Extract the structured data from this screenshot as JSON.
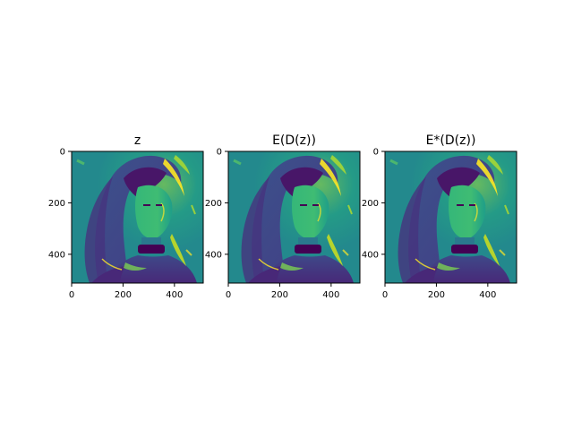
{
  "figure": {
    "background": "#ffffff"
  },
  "colormap": [
    "#440154",
    "#3b528b",
    "#21918c",
    "#5ec962",
    "#fde725"
  ],
  "chart_data": [
    {
      "type": "heatmap",
      "title": "z",
      "xlim": [
        0,
        512
      ],
      "ylim": [
        0,
        512
      ],
      "xticks": [
        0,
        200,
        400
      ],
      "yticks": [
        0,
        200,
        400
      ],
      "xtick_labels": [
        "0",
        "200",
        "400"
      ],
      "ytick_labels": [
        "0",
        "200",
        "400"
      ],
      "y_inverted": true
    },
    {
      "type": "heatmap",
      "title": "E(D(z))",
      "xlim": [
        0,
        512
      ],
      "ylim": [
        0,
        512
      ],
      "xticks": [
        0,
        200,
        400
      ],
      "yticks": [
        0,
        200,
        400
      ],
      "xtick_labels": [
        "0",
        "200",
        "400"
      ],
      "ytick_labels": [
        "0",
        "200",
        "400"
      ],
      "y_inverted": true
    },
    {
      "type": "heatmap",
      "title": "E*(D(z))",
      "xlim": [
        0,
        512
      ],
      "ylim": [
        0,
        512
      ],
      "xticks": [
        0,
        200,
        400
      ],
      "yticks": [
        0,
        200,
        400
      ],
      "xtick_labels": [
        "0",
        "200",
        "400"
      ],
      "ytick_labels": [
        "0",
        "200",
        "400"
      ],
      "y_inverted": true
    }
  ]
}
